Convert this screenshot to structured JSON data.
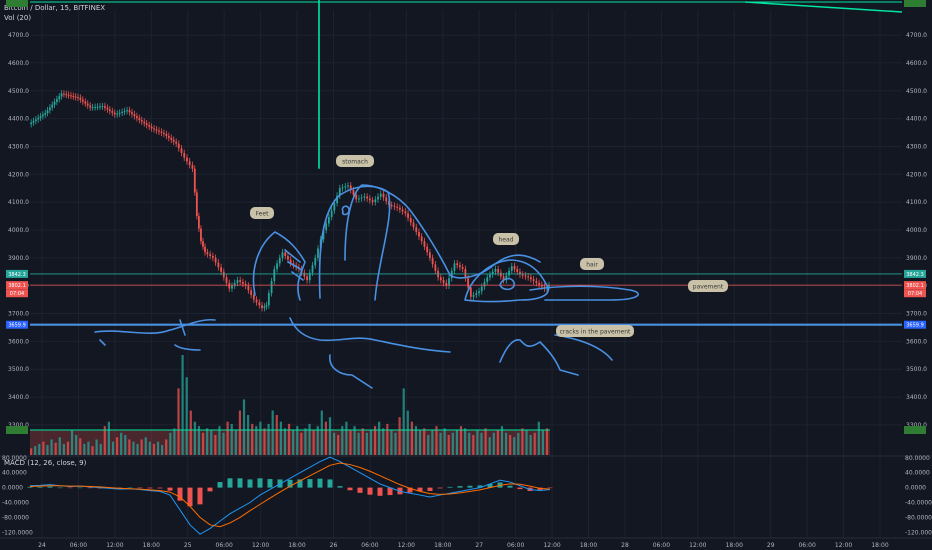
{
  "header": {
    "title": "Bitcoin / Dollar, 15, BITFINEX",
    "volume_label": "Vol (20)",
    "macd_label": "MACD (12, 26, close, 9)"
  },
  "colors": {
    "background": "#131722",
    "up": "#26a69a",
    "down": "#ef5350",
    "drawing": "#4a90e2",
    "grid": "#1e2230",
    "trend": "#00e5a0",
    "note_bg": "#c9c2a8"
  },
  "chart_data": {
    "type": "candlestick",
    "symbol": "Bitcoin / Dollar",
    "interval": "15",
    "exchange": "BITFINEX",
    "price_axis": {
      "ticks": [
        4700.0,
        4600.0,
        4500.0,
        4400.0,
        4300.0,
        4200.0,
        4100.0,
        4000.0,
        3900.0,
        3800.0,
        3700.0,
        3600.0,
        3500.0,
        3400.0,
        3300.0
      ],
      "ylim": [
        3210,
        4790
      ]
    },
    "price_tags": [
      {
        "label": "3842.3",
        "value": 3842.3,
        "color": "#26a69a"
      },
      {
        "label": "3802.1",
        "value": 3802.1,
        "color": "#ef5350"
      },
      {
        "label": "07:04",
        "value": 3773,
        "color": "#ef5350"
      },
      {
        "label": "3659.9",
        "value": 3659.9,
        "color": "#2962ff"
      }
    ],
    "time_axis": [
      "24",
      "06:00",
      "12:00",
      "18:00",
      "25",
      "06:00",
      "12:00",
      "18:00",
      "26",
      "06:00",
      "12:00",
      "18:00",
      "27",
      "06:00",
      "12:00",
      "18:00",
      "28",
      "06:00",
      "12:00",
      "18:00",
      "29",
      "06:00",
      "12:00",
      "18:00"
    ],
    "price_path": [
      [
        0,
        4380
      ],
      [
        4,
        4420
      ],
      [
        8,
        4490
      ],
      [
        12,
        4475
      ],
      [
        15,
        4440
      ],
      [
        18,
        4445
      ],
      [
        21,
        4415
      ],
      [
        24,
        4430
      ],
      [
        27,
        4395
      ],
      [
        30,
        4365
      ],
      [
        33,
        4345
      ],
      [
        36,
        4310
      ],
      [
        38,
        4260
      ],
      [
        40,
        4220
      ],
      [
        41,
        4050
      ],
      [
        42,
        3960
      ],
      [
        43,
        3920
      ],
      [
        45,
        3900
      ],
      [
        47,
        3850
      ],
      [
        49,
        3790
      ],
      [
        51,
        3820
      ],
      [
        53,
        3800
      ],
      [
        55,
        3750
      ],
      [
        57,
        3720
      ],
      [
        58,
        3730
      ],
      [
        60,
        3860
      ],
      [
        62,
        3920
      ],
      [
        64,
        3880
      ],
      [
        66,
        3860
      ],
      [
        68,
        3820
      ],
      [
        70,
        3900
      ],
      [
        72,
        4000
      ],
      [
        74,
        4070
      ],
      [
        76,
        4150
      ],
      [
        78,
        4160
      ],
      [
        80,
        4110
      ],
      [
        82,
        4120
      ],
      [
        84,
        4100
      ],
      [
        86,
        4130
      ],
      [
        88,
        4090
      ],
      [
        90,
        4080
      ],
      [
        92,
        4060
      ],
      [
        94,
        4010
      ],
      [
        96,
        3960
      ],
      [
        98,
        3900
      ],
      [
        100,
        3830
      ],
      [
        102,
        3800
      ],
      [
        104,
        3880
      ],
      [
        106,
        3860
      ],
      [
        108,
        3760
      ],
      [
        110,
        3780
      ],
      [
        112,
        3830
      ],
      [
        114,
        3860
      ],
      [
        116,
        3820
      ],
      [
        118,
        3870
      ],
      [
        120,
        3840
      ],
      [
        122,
        3830
      ],
      [
        124,
        3810
      ],
      [
        126,
        3790
      ],
      [
        127,
        3802
      ]
    ],
    "vertical_marker_value": 4220,
    "horizontal_levels": [
      {
        "label": "3842.3",
        "value": 3842.3
      },
      {
        "label": "3802.1",
        "value": 3802.1
      },
      {
        "label": "3659.9",
        "value": 3659.9
      }
    ],
    "volume": {
      "label": "Vol (20)",
      "bars": [
        6,
        8,
        10,
        12,
        9,
        14,
        11,
        16,
        10,
        12,
        22,
        18,
        15,
        10,
        12,
        8,
        14,
        10,
        26,
        30,
        12,
        16,
        20,
        18,
        14,
        12,
        10,
        14,
        16,
        12,
        10,
        12,
        9,
        14,
        20,
        24,
        60,
        90,
        70,
        40,
        30,
        26,
        20,
        24,
        22,
        18,
        26,
        20,
        30,
        28,
        22,
        40,
        50,
        36,
        28,
        26,
        30,
        24,
        28,
        40,
        36,
        30,
        24,
        28,
        22,
        26,
        20,
        24,
        28,
        22,
        26,
        40,
        30,
        34,
        20,
        18,
        26,
        30,
        22,
        26,
        20,
        24,
        20,
        22,
        26,
        30,
        24,
        28,
        22,
        20,
        34,
        60,
        40,
        30,
        26,
        22,
        24,
        18,
        22,
        26,
        20,
        24,
        18,
        20,
        22,
        26,
        24,
        20,
        18,
        22,
        20,
        24,
        16,
        20,
        22,
        26,
        20,
        18,
        16,
        20,
        24,
        22,
        18,
        20,
        30,
        22,
        24
      ]
    },
    "macd": {
      "label": "MACD (12, 26, close, 9)",
      "ticks": [
        80.0,
        40.0,
        0.0,
        -40.0,
        -80.0,
        -120.0
      ],
      "ylim": [
        -130,
        85
      ],
      "macd_line": [
        5,
        6,
        8,
        5,
        3,
        4,
        2,
        0,
        -2,
        -4,
        -3,
        -5,
        -8,
        -10,
        -20,
        -60,
        -100,
        -125,
        -110,
        -90,
        -70,
        -55,
        -40,
        -20,
        -5,
        10,
        25,
        40,
        55,
        70,
        82,
        70,
        55,
        40,
        25,
        10,
        0,
        -10,
        -15,
        -20,
        -25,
        -20,
        -15,
        -10,
        -5,
        0,
        10,
        20,
        15,
        5,
        -5,
        -8,
        -5
      ],
      "signal_line": [
        3,
        4,
        5,
        5,
        4,
        4,
        3,
        2,
        0,
        -2,
        -3,
        -4,
        -6,
        -8,
        -12,
        -25,
        -50,
        -80,
        -100,
        -105,
        -95,
        -80,
        -62,
        -45,
        -28,
        -12,
        4,
        18,
        32,
        46,
        60,
        66,
        62,
        54,
        44,
        32,
        20,
        8,
        -2,
        -10,
        -16,
        -18,
        -17,
        -14,
        -10,
        -6,
        0,
        6,
        10,
        9,
        4,
        -2,
        -4
      ],
      "histogram": [
        2,
        2,
        3,
        0,
        -1,
        0,
        -1,
        -2,
        -2,
        -2,
        0,
        -1,
        -2,
        -2,
        -8,
        -35,
        -50,
        -45,
        -10,
        15,
        25,
        25,
        22,
        25,
        23,
        22,
        21,
        22,
        23,
        24,
        22,
        4,
        -7,
        -14,
        -19,
        -22,
        -20,
        -18,
        -13,
        -10,
        -9,
        -2,
        2,
        4,
        5,
        6,
        10,
        14,
        5,
        -4,
        -9,
        -6,
        -1
      ]
    }
  },
  "annotations": [
    {
      "id": "feet",
      "text": "Feet"
    },
    {
      "id": "stomach",
      "text": "stomach"
    },
    {
      "id": "head",
      "text": "head"
    },
    {
      "id": "hair",
      "text": "hair"
    },
    {
      "id": "pavement",
      "text": "pavement"
    },
    {
      "id": "cracks",
      "text": "cracks in the pavement"
    }
  ]
}
